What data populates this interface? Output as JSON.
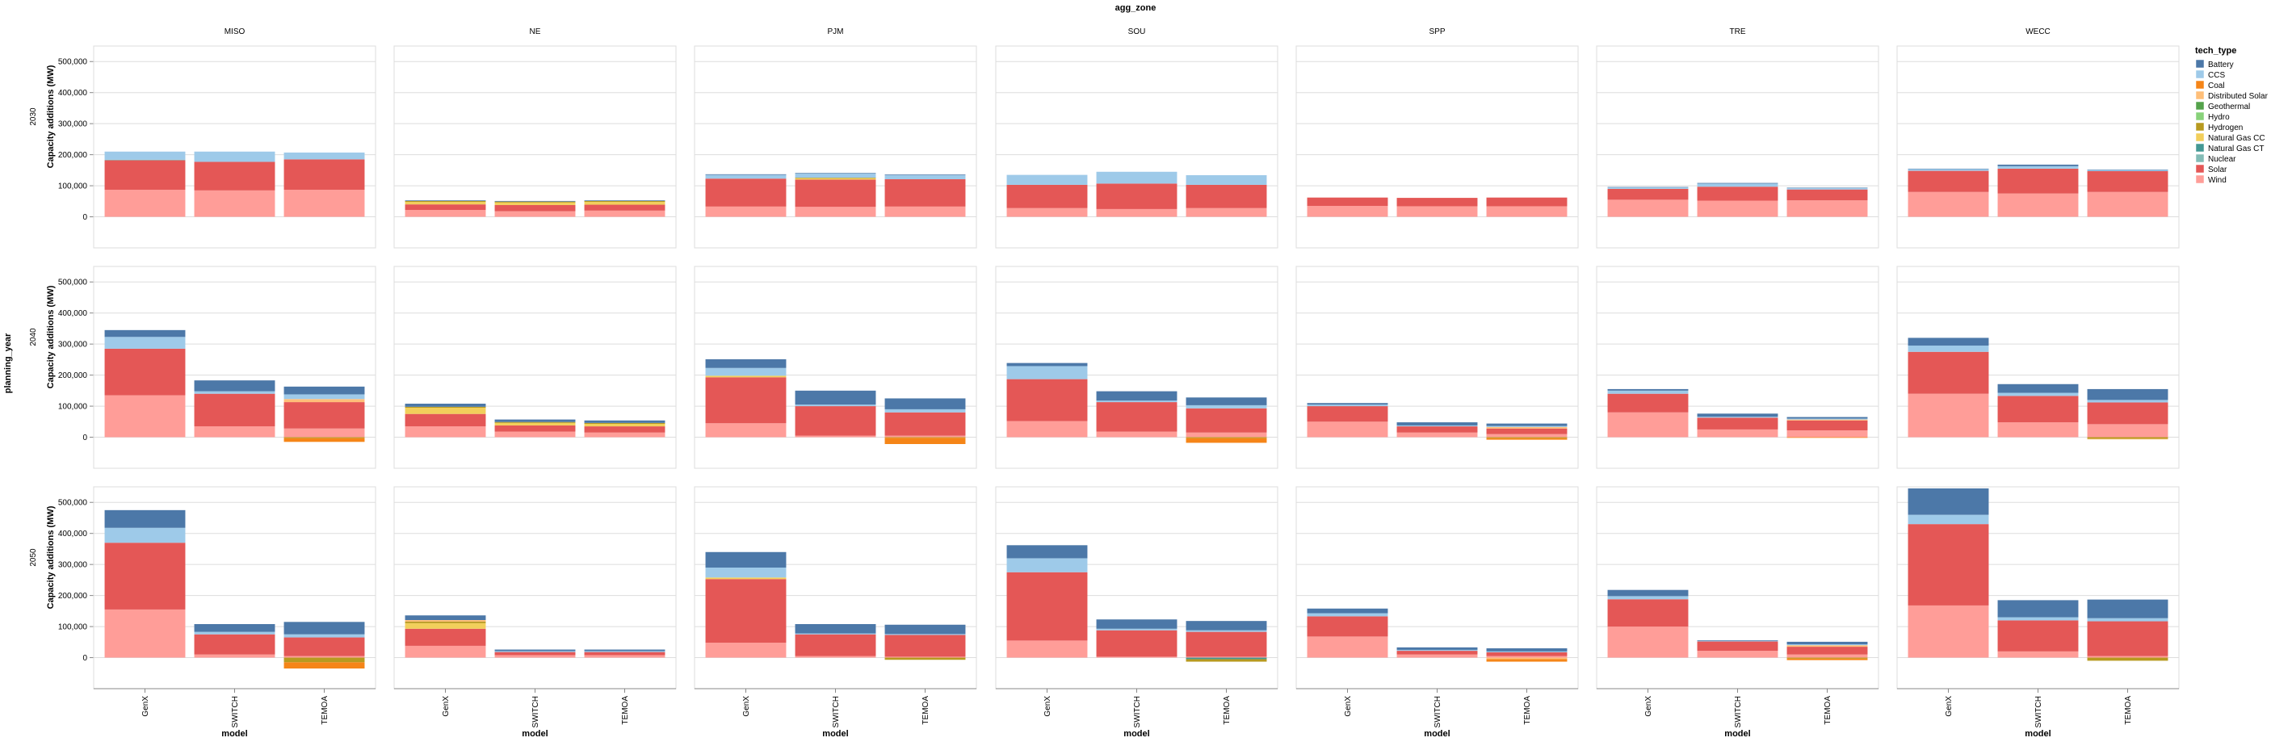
{
  "chart_data": {
    "type": "bar",
    "stacked": true,
    "title": "agg_zone",
    "facet_column_field": "agg_zone",
    "facet_row_field": "planning_year",
    "columns": [
      "MISO",
      "NE",
      "PJM",
      "SOU",
      "SPP",
      "TRE",
      "WECC"
    ],
    "rows": [
      "2030",
      "2040",
      "2050"
    ],
    "categories": [
      "GenX",
      "SWITCH",
      "TEMOA"
    ],
    "xlabel": "model",
    "ylabel": "Capacity additions (MW)",
    "ylim": [
      -100000,
      550000
    ],
    "yticks": [
      0,
      100000,
      200000,
      300000,
      400000,
      500000
    ],
    "ytick_labels": [
      "0",
      "100,000",
      "200,000",
      "300,000",
      "400,000",
      "500,000"
    ],
    "grid": true,
    "legend_title": "tech_type",
    "legend_position": "right",
    "tech_types": [
      "Battery",
      "CCS",
      "Coal",
      "Distributed Solar",
      "Geothermal",
      "Hydro",
      "Hydrogen",
      "Natural Gas CC",
      "Natural Gas CT",
      "Nuclear",
      "Solar",
      "Wind"
    ],
    "colors": {
      "Battery": "#4c78a8",
      "CCS": "#9ecae9",
      "Coal": "#f58518",
      "Distributed Solar": "#ffbf79",
      "Geothermal": "#54a24b",
      "Hydro": "#88d27a",
      "Hydrogen": "#b79a20",
      "Natural Gas CC": "#f2cf5b",
      "Natural Gas CT": "#439894",
      "Nuclear": "#83bcb6",
      "Solar": "#e45756",
      "Wind": "#ff9d98"
    },
    "stack_order": [
      "Wind",
      "Solar",
      "Nuclear",
      "Natural Gas CT",
      "Natural Gas CC",
      "Hydrogen",
      "Hydro",
      "Geothermal",
      "Distributed Solar",
      "Coal",
      "CCS",
      "Battery"
    ],
    "series": {
      "2030": {
        "MISO": {
          "GenX": {
            "Wind": 87000,
            "Solar": 95000,
            "Nuclear": 2000,
            "CCS": 26000,
            "Battery": 0
          },
          "SWITCH": {
            "Wind": 85000,
            "Solar": 92000,
            "CCS": 33000,
            "Battery": 0
          },
          "TEMOA": {
            "Wind": 87000,
            "Solar": 98000,
            "CCS": 22000,
            "Battery": 0
          }
        },
        "NE": {
          "GenX": {
            "Wind": 22000,
            "Solar": 18000,
            "Natural Gas CC": 8000,
            "Hydrogen": 3000,
            "Battery": 2000
          },
          "SWITCH": {
            "Wind": 18000,
            "Solar": 20000,
            "Natural Gas CC": 8000,
            "Hydrogen": 3000,
            "Battery": 2000
          },
          "TEMOA": {
            "Wind": 20000,
            "Solar": 19000,
            "Natural Gas CC": 9000,
            "Hydrogen": 3000,
            "Battery": 2000
          }
        },
        "PJM": {
          "GenX": {
            "Wind": 33000,
            "Solar": 90000,
            "CCS": 12000,
            "Battery": 2000
          },
          "SWITCH": {
            "Wind": 32000,
            "Solar": 88000,
            "Natural Gas CC": 4000,
            "Hydrogen": 2000,
            "CCS": 13000,
            "Battery": 2000
          },
          "TEMOA": {
            "Wind": 33000,
            "Solar": 88000,
            "CCS": 13000,
            "Battery": 2000
          }
        },
        "SOU": {
          "GenX": {
            "Wind": 28000,
            "Solar": 75000,
            "CCS": 32000,
            "Battery": 0
          },
          "SWITCH": {
            "Wind": 25000,
            "Solar": 82000,
            "CCS": 38000,
            "Battery": 0
          },
          "TEMOA": {
            "Wind": 28000,
            "Solar": 75000,
            "CCS": 31000,
            "Battery": 0
          }
        },
        "SPP": {
          "GenX": {
            "Wind": 35000,
            "Solar": 27000,
            "Battery": 0
          },
          "SWITCH": {
            "Wind": 34000,
            "Solar": 27000,
            "Battery": 0
          },
          "TEMOA": {
            "Wind": 34000,
            "Solar": 28000,
            "Battery": 0
          }
        },
        "TRE": {
          "GenX": {
            "Wind": 55000,
            "Solar": 35000,
            "CCS": 5000,
            "Battery": 1000
          },
          "SWITCH": {
            "Wind": 52000,
            "Solar": 45000,
            "CCS": 10000,
            "Battery": 2000
          },
          "TEMOA": {
            "Wind": 53000,
            "Solar": 35000,
            "CCS": 5000,
            "Battery": 1000
          }
        },
        "WECC": {
          "GenX": {
            "Wind": 80000,
            "Solar": 68000,
            "CCS": 6000,
            "Battery": 1000
          },
          "SWITCH": {
            "Wind": 75000,
            "Solar": 80000,
            "CCS": 8000,
            "Battery": 5000
          },
          "TEMOA": {
            "Wind": 80000,
            "Solar": 67000,
            "CCS": 4000,
            "Battery": 1000
          }
        }
      },
      "2040": {
        "MISO": {
          "GenX": {
            "Wind": 135000,
            "Solar": 150000,
            "CCS": 38000,
            "Battery": 22000
          },
          "SWITCH": {
            "Wind": 35000,
            "Solar": 105000,
            "CCS": 8000,
            "Battery": 35000
          },
          "TEMOA": {
            "Wind": 28000,
            "Solar": 85000,
            "Distributed Solar": 10000,
            "CCS": 15000,
            "Battery": 25000,
            "Coal": -12000,
            "Hydrogen": -3000
          }
        },
        "NE": {
          "GenX": {
            "Wind": 35000,
            "Solar": 40000,
            "Natural Gas CC": 20000,
            "Hydrogen": 3000,
            "Battery": 10000
          },
          "SWITCH": {
            "Wind": 18000,
            "Solar": 20000,
            "Natural Gas CC": 8000,
            "Hydrogen": 3000,
            "Battery": 8000
          },
          "TEMOA": {
            "Wind": 15000,
            "Solar": 20000,
            "Natural Gas CC": 8000,
            "Hydrogen": 3000,
            "Battery": 8000
          }
        },
        "PJM": {
          "GenX": {
            "Wind": 45000,
            "Solar": 148000,
            "Natural Gas CC": 5000,
            "CCS": 25000,
            "Battery": 28000
          },
          "SWITCH": {
            "Wind": 5000,
            "Solar": 95000,
            "CCS": 5000,
            "Battery": 45000
          },
          "TEMOA": {
            "Wind": 5000,
            "Solar": 75000,
            "CCS": 10000,
            "Battery": 35000,
            "Coal": -20000,
            "Hydrogen": -2000
          }
        },
        "SOU": {
          "GenX": {
            "Wind": 52000,
            "Solar": 135000,
            "CCS": 42000,
            "Battery": 10000
          },
          "SWITCH": {
            "Wind": 18000,
            "Solar": 95000,
            "CCS": 5000,
            "Battery": 30000
          },
          "TEMOA": {
            "Wind": 15000,
            "Solar": 78000,
            "CCS": 10000,
            "Battery": 25000,
            "Coal": -15000,
            "Hydrogen": -3000
          }
        },
        "SPP": {
          "GenX": {
            "Wind": 50000,
            "Solar": 50000,
            "CCS": 5000,
            "Battery": 5000
          },
          "SWITCH": {
            "Wind": 15000,
            "Solar": 20000,
            "CCS": 3000,
            "Battery": 10000
          },
          "TEMOA": {
            "Wind": 10000,
            "Solar": 18000,
            "Distributed Solar": 5000,
            "CCS": 3000,
            "Battery": 8000,
            "Coal": -5000,
            "Hydrogen": -3000
          }
        },
        "TRE": {
          "GenX": {
            "Wind": 80000,
            "Solar": 60000,
            "CCS": 10000,
            "Battery": 5000
          },
          "SWITCH": {
            "Wind": 25000,
            "Solar": 38000,
            "CCS": 3000,
            "Battery": 10000
          },
          "TEMOA": {
            "Wind": 22000,
            "Solar": 32000,
            "Distributed Solar": 3000,
            "CCS": 3000,
            "Battery": 5000,
            "Coal": -2000
          }
        },
        "WECC": {
          "GenX": {
            "Wind": 140000,
            "Solar": 135000,
            "CCS": 20000,
            "Battery": 25000
          },
          "SWITCH": {
            "Wind": 48000,
            "Solar": 85000,
            "CCS": 10000,
            "Battery": 28000
          },
          "TEMOA": {
            "Wind": 42000,
            "Solar": 70000,
            "CCS": 8000,
            "Battery": 35000,
            "Hydrogen": -5000,
            "Distributed Solar": -2000
          }
        }
      },
      "2050": {
        "MISO": {
          "GenX": {
            "Wind": 155000,
            "Solar": 215000,
            "CCS": 48000,
            "Battery": 57000
          },
          "SWITCH": {
            "Wind": 10000,
            "Solar": 65000,
            "CCS": 8000,
            "Battery": 25000
          },
          "TEMOA": {
            "Wind": 5000,
            "Solar": 60000,
            "CCS": 10000,
            "Battery": 40000,
            "Hydrogen": -15000,
            "Coal": -20000
          }
        },
        "NE": {
          "GenX": {
            "Wind": 38000,
            "Solar": 55000,
            "Natural Gas CC": 18000,
            "Hydrogen": 5000,
            "Distributed Solar": 5000,
            "Battery": 15000
          },
          "SWITCH": {
            "Wind": 8000,
            "Solar": 10000,
            "CCS": 3000,
            "Battery": 5000
          },
          "TEMOA": {
            "Wind": 8000,
            "Solar": 10000,
            "CCS": 3000,
            "Battery": 5000
          }
        },
        "PJM": {
          "GenX": {
            "Wind": 48000,
            "Solar": 205000,
            "Natural Gas CC": 5000,
            "CCS": 32000,
            "Battery": 50000
          },
          "SWITCH": {
            "Wind": 5000,
            "Solar": 70000,
            "CCS": 3000,
            "Battery": 30000
          },
          "TEMOA": {
            "Wind": 3000,
            "Solar": 70000,
            "CCS": 3000,
            "Battery": 30000,
            "Hydrogen": -7000
          }
        },
        "SOU": {
          "GenX": {
            "Wind": 55000,
            "Solar": 220000,
            "CCS": 45000,
            "Battery": 42000
          },
          "SWITCH": {
            "Wind": 3000,
            "Solar": 85000,
            "CCS": 5000,
            "Battery": 30000
          },
          "TEMOA": {
            "Wind": 3000,
            "Solar": 80000,
            "CCS": 5000,
            "Battery": 30000,
            "Hydrogen": -8000,
            "Natural Gas CT": -5000
          }
        },
        "SPP": {
          "GenX": {
            "Wind": 68000,
            "Solar": 65000,
            "CCS": 10000,
            "Battery": 15000
          },
          "SWITCH": {
            "Wind": 10000,
            "Solar": 12000,
            "CCS": 3000,
            "Battery": 8000
          },
          "TEMOA": {
            "Wind": 5000,
            "Solar": 12000,
            "CCS": 3000,
            "Battery": 10000,
            "Distributed Solar": -5000,
            "Coal": -8000
          }
        },
        "TRE": {
          "GenX": {
            "Wind": 100000,
            "Solar": 88000,
            "CCS": 10000,
            "Battery": 20000
          },
          "SWITCH": {
            "Wind": 22000,
            "Solar": 30000,
            "CCS": 2000,
            "Battery": 2000
          },
          "TEMOA": {
            "Wind": 10000,
            "Solar": 25000,
            "Distributed Solar": 5000,
            "CCS": 3000,
            "Battery": 8000,
            "Coal": -5000,
            "Hydrogen": -3000
          }
        },
        "WECC": {
          "GenX": {
            "Wind": 168000,
            "Solar": 262000,
            "CCS": 30000,
            "Battery": 85000
          },
          "SWITCH": {
            "Wind": 20000,
            "Solar": 100000,
            "CCS": 10000,
            "Battery": 55000
          },
          "TEMOA": {
            "Wind": 5000,
            "Solar": 112000,
            "CCS": 10000,
            "Battery": 60000,
            "Hydrogen": -10000
          }
        }
      }
    }
  }
}
